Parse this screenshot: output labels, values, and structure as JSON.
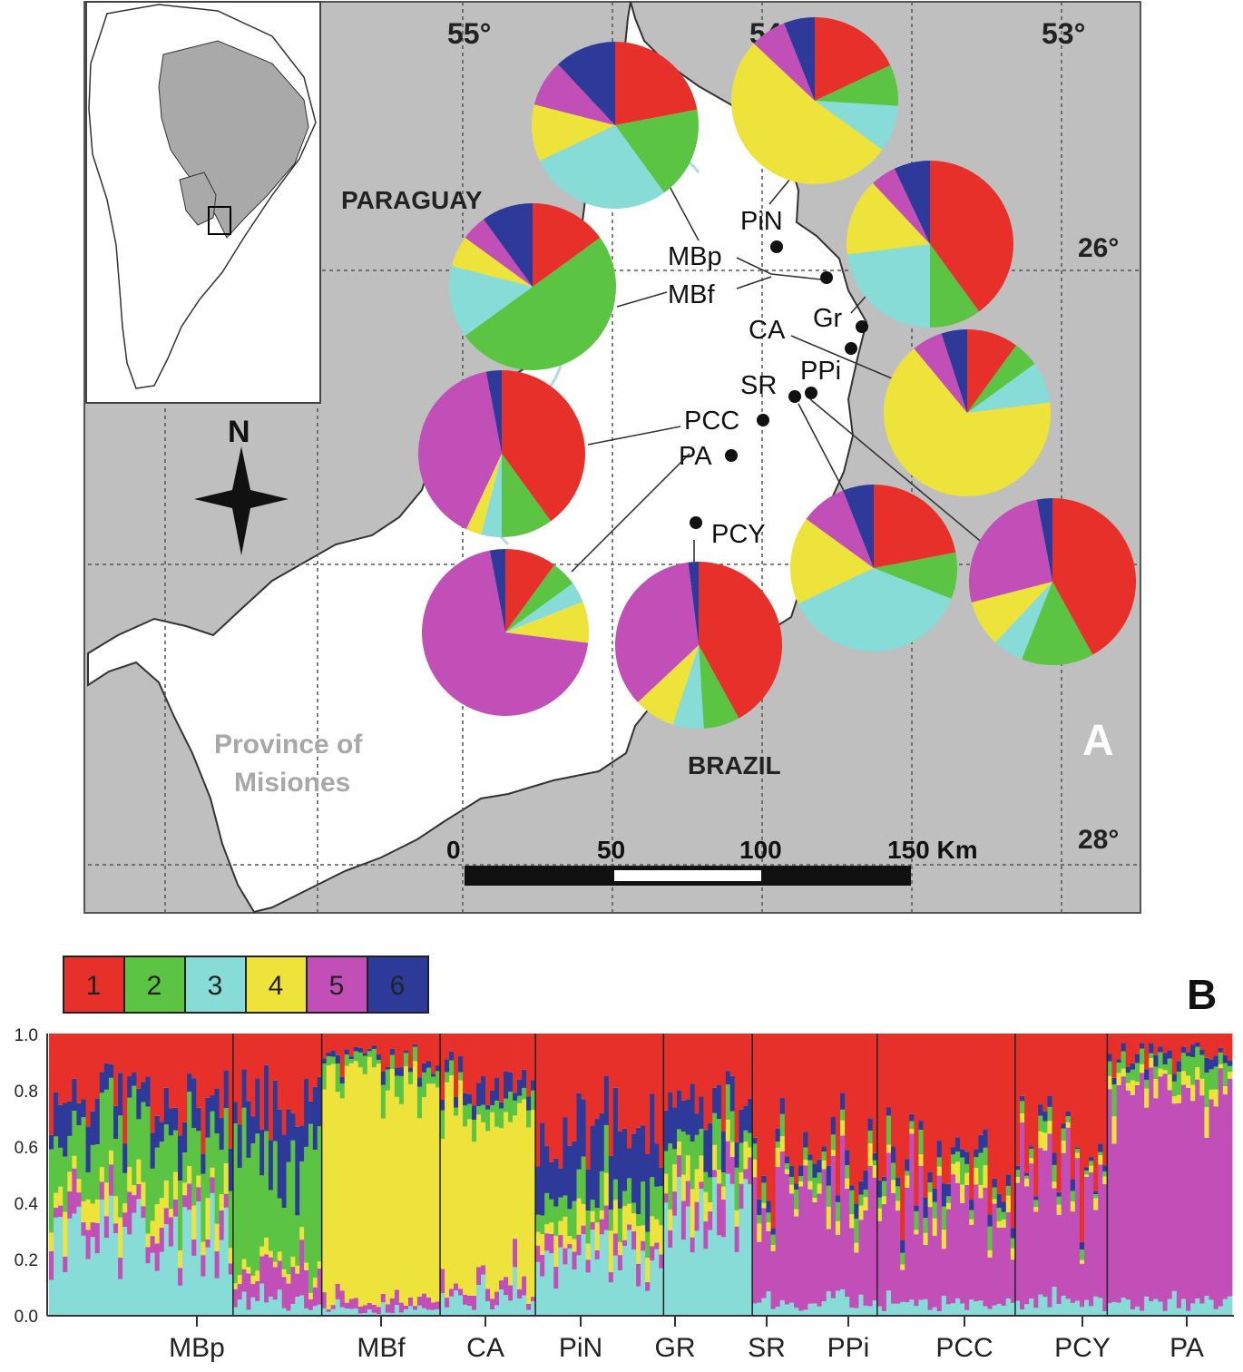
{
  "panel_a": {
    "letter": "A",
    "graticule": {
      "lon_labels": [
        "55°",
        "54°",
        "53°"
      ],
      "lat_labels": [
        "26°",
        "28°"
      ]
    },
    "country_labels": {
      "paraguay": "PARAGUAY",
      "brazil": "BRAZIL"
    },
    "province_label": [
      "Province of",
      "Misiones"
    ],
    "compass": {
      "label": "N"
    },
    "scale_bar": {
      "ticks": [
        "0",
        "50",
        "100",
        "150 Km"
      ]
    },
    "sites": [
      {
        "code": "PiN"
      },
      {
        "code": "MBp"
      },
      {
        "code": "MBf"
      },
      {
        "code": "Gr"
      },
      {
        "code": "CA"
      },
      {
        "code": "SR"
      },
      {
        "code": "PPi"
      },
      {
        "code": "PCC"
      },
      {
        "code": "PA"
      },
      {
        "code": "PCY"
      }
    ],
    "pie_proportions": [
      {
        "site": "MBp",
        "values": [
          0.22,
          0.18,
          0.28,
          0.11,
          0.09,
          0.12
        ]
      },
      {
        "site": "PiN",
        "values": [
          0.18,
          0.08,
          0.09,
          0.52,
          0.07,
          0.06
        ]
      },
      {
        "site": "MBf",
        "values": [
          0.15,
          0.5,
          0.14,
          0.06,
          0.05,
          0.1
        ]
      },
      {
        "site": "Gr",
        "values": [
          0.4,
          0.1,
          0.23,
          0.15,
          0.05,
          0.07
        ]
      },
      {
        "site": "PCC",
        "values": [
          0.4,
          0.1,
          0.04,
          0.03,
          0.4,
          0.03
        ]
      },
      {
        "site": "CA",
        "values": [
          0.1,
          0.05,
          0.08,
          0.66,
          0.06,
          0.05
        ]
      },
      {
        "site": "SR",
        "values": [
          0.22,
          0.09,
          0.37,
          0.17,
          0.09,
          0.06
        ]
      },
      {
        "site": "PA",
        "values": [
          0.1,
          0.05,
          0.04,
          0.08,
          0.7,
          0.03
        ]
      },
      {
        "site": "PCY",
        "values": [
          0.42,
          0.07,
          0.06,
          0.08,
          0.35,
          0.02
        ]
      },
      {
        "site": "PPi",
        "values": [
          0.42,
          0.14,
          0.06,
          0.09,
          0.26,
          0.03
        ]
      }
    ]
  },
  "panel_b": {
    "letter": "B",
    "legend": [
      "1",
      "2",
      "3",
      "4",
      "5",
      "6"
    ],
    "colors": [
      "#e8302b",
      "#5cc443",
      "#88dcd8",
      "#ede33a",
      "#c24fb8",
      "#2e3a99"
    ],
    "y_ticks": [
      "0.0",
      "0.2",
      "0.4",
      "0.6",
      "0.8",
      "1.0"
    ],
    "populations": [
      "MBp",
      "MBf",
      "CA",
      "PiN",
      "GR",
      "SR",
      "PPi",
      "PCC",
      "PCY",
      "PA"
    ]
  },
  "chart_data": {
    "type": "bar",
    "stacked": true,
    "normalized": true,
    "categories": [
      "MBp",
      "MBf",
      "CA",
      "PiN",
      "GR",
      "SR",
      "PPi",
      "PCC",
      "PCY",
      "PA"
    ],
    "series": [
      {
        "name": "1",
        "values": [
          0.25,
          0.25,
          0.08,
          0.2,
          0.35,
          0.22,
          0.4,
          0.5,
          0.45,
          0.08
        ]
      },
      {
        "name": "2",
        "values": [
          0.2,
          0.4,
          0.05,
          0.06,
          0.1,
          0.1,
          0.05,
          0.05,
          0.03,
          0.06
        ]
      },
      {
        "name": "3",
        "values": [
          0.3,
          0.05,
          0.02,
          0.06,
          0.22,
          0.4,
          0.05,
          0.04,
          0.05,
          0.05
        ]
      },
      {
        "name": "4",
        "values": [
          0.08,
          0.03,
          0.8,
          0.6,
          0.08,
          0.08,
          0.04,
          0.04,
          0.03,
          0.04
        ]
      },
      {
        "name": "5",
        "values": [
          0.07,
          0.1,
          0.03,
          0.04,
          0.05,
          0.08,
          0.42,
          0.33,
          0.42,
          0.74
        ]
      },
      {
        "name": "6",
        "values": [
          0.1,
          0.17,
          0.02,
          0.04,
          0.2,
          0.12,
          0.04,
          0.04,
          0.02,
          0.03
        ]
      }
    ],
    "ylim": [
      0,
      1
    ]
  }
}
